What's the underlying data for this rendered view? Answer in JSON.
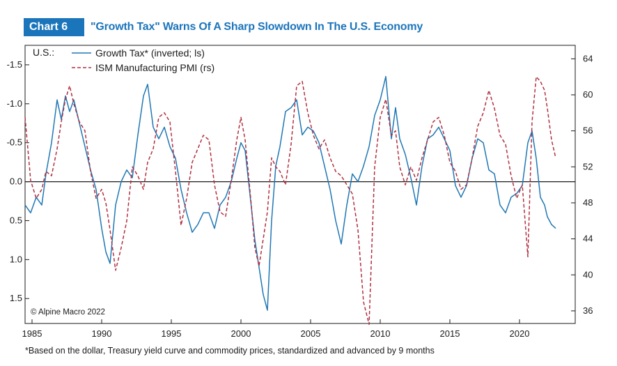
{
  "header": {
    "badge": "Chart 6",
    "title": "\"Growth Tax\" Warns Of A Sharp Slowdown In The U.S. Economy"
  },
  "footnote": "*Based on the dollar, Treasury yield curve and commodity prices, standardized and advanced by 9 months",
  "chart_data": {
    "type": "line",
    "region_label": "U.S.:",
    "source": "© Alpine Macro 2022",
    "x_ticks": [
      "1985",
      "1990",
      "1995",
      "2000",
      "2005",
      "2010",
      "2015",
      "2020"
    ],
    "xlim": [
      1984.5,
      2024.0
    ],
    "left_axis": {
      "ticks": [
        "-1.5",
        "-1.0",
        "-0.5",
        "0.0",
        "0.5",
        "1.0",
        "1.5"
      ],
      "ylim": [
        -1.75,
        1.82
      ],
      "inverted": true
    },
    "right_axis": {
      "ticks": [
        "64",
        "60",
        "56",
        "52",
        "48",
        "44",
        "40",
        "36"
      ],
      "ylim": [
        34.6,
        65.5
      ]
    },
    "zero_line": 0.0,
    "colors": {
      "growth_tax": "#1f77b4",
      "ism": "#b03040",
      "title": "#1b75bb"
    },
    "series": [
      {
        "name": "Growth Tax* (inverted; ls)",
        "axis": "left",
        "style": "solid",
        "x": [
          1984.5,
          1984.9,
          1985.3,
          1985.7,
          1986.0,
          1986.4,
          1986.8,
          1987.1,
          1987.4,
          1987.7,
          1988.0,
          1988.4,
          1988.8,
          1989.2,
          1989.6,
          1990.0,
          1990.3,
          1990.6,
          1991.0,
          1991.4,
          1991.8,
          1992.2,
          1992.6,
          1993.0,
          1993.3,
          1993.7,
          1994.1,
          1994.5,
          1994.9,
          1995.3,
          1995.7,
          1996.1,
          1996.5,
          1996.9,
          1997.3,
          1997.7,
          1998.1,
          1998.5,
          1998.9,
          1999.3,
          1999.7,
          2000.0,
          2000.3,
          2000.7,
          2001.0,
          2001.3,
          2001.6,
          2001.9,
          2002.2,
          2002.5,
          2002.8,
          2003.2,
          2003.6,
          2004.0,
          2004.4,
          2004.8,
          2005.2,
          2005.6,
          2006.0,
          2006.4,
          2006.8,
          2007.2,
          2007.6,
          2008.0,
          2008.4,
          2008.8,
          2009.2,
          2009.6,
          2010.0,
          2010.4,
          2010.8,
          2011.1,
          2011.4,
          2011.8,
          2012.2,
          2012.6,
          2013.0,
          2013.4,
          2013.8,
          2014.2,
          2014.6,
          2015.0,
          2015.4,
          2015.8,
          2016.2,
          2016.6,
          2017.0,
          2017.4,
          2017.8,
          2018.2,
          2018.6,
          2019.0,
          2019.4,
          2019.8,
          2020.2,
          2020.6,
          2020.9,
          2021.2,
          2021.5,
          2021.8,
          2022.0,
          2022.3,
          2022.6
        ],
        "values": [
          0.3,
          0.4,
          0.2,
          0.3,
          -0.1,
          -0.5,
          -1.05,
          -0.8,
          -1.1,
          -0.9,
          -1.05,
          -0.75,
          -0.45,
          -0.15,
          0.1,
          0.6,
          0.9,
          1.05,
          0.3,
          0.0,
          -0.15,
          -0.05,
          -0.6,
          -1.1,
          -1.25,
          -0.7,
          -0.55,
          -0.7,
          -0.45,
          -0.3,
          0.1,
          0.4,
          0.65,
          0.55,
          0.4,
          0.4,
          0.6,
          0.3,
          0.2,
          0.0,
          -0.3,
          -0.5,
          -0.4,
          0.25,
          0.75,
          1.1,
          1.45,
          1.65,
          0.5,
          -0.2,
          -0.45,
          -0.9,
          -0.95,
          -1.05,
          -0.6,
          -0.7,
          -0.65,
          -0.5,
          -0.2,
          0.1,
          0.5,
          0.8,
          0.3,
          -0.1,
          0.0,
          -0.2,
          -0.45,
          -0.85,
          -1.05,
          -1.35,
          -0.55,
          -0.95,
          -0.55,
          -0.35,
          -0.05,
          0.3,
          -0.2,
          -0.55,
          -0.6,
          -0.7,
          -0.55,
          -0.4,
          0.05,
          0.2,
          0.05,
          -0.3,
          -0.55,
          -0.5,
          -0.15,
          -0.1,
          0.3,
          0.4,
          0.2,
          0.15,
          0.05,
          -0.5,
          -0.65,
          -0.3,
          0.2,
          0.3,
          0.45,
          0.55,
          0.6
        ]
      },
      {
        "name": "ISM Manufacturing PMI (rs)",
        "axis": "right",
        "style": "dashed",
        "x": [
          1984.5,
          1984.9,
          1985.3,
          1985.7,
          1986.0,
          1986.4,
          1986.8,
          1987.1,
          1987.4,
          1987.7,
          1988.0,
          1988.4,
          1988.8,
          1989.2,
          1989.6,
          1990.0,
          1990.3,
          1990.6,
          1991.0,
          1991.4,
          1991.8,
          1992.2,
          1992.6,
          1993.0,
          1993.3,
          1993.7,
          1994.1,
          1994.5,
          1994.9,
          1995.3,
          1995.7,
          1996.1,
          1996.5,
          1996.9,
          1997.3,
          1997.7,
          1998.1,
          1998.5,
          1998.9,
          1999.3,
          1999.7,
          2000.0,
          2000.3,
          2000.7,
          2001.0,
          2001.3,
          2001.6,
          2001.9,
          2002.2,
          2002.5,
          2002.8,
          2003.2,
          2003.6,
          2004.0,
          2004.4,
          2004.8,
          2005.2,
          2005.6,
          2006.0,
          2006.4,
          2006.8,
          2007.2,
          2007.6,
          2008.0,
          2008.4,
          2008.8,
          2009.2,
          2009.6,
          2010.0,
          2010.4,
          2010.8,
          2011.1,
          2011.4,
          2011.8,
          2012.2,
          2012.6,
          2013.0,
          2013.4,
          2013.8,
          2014.2,
          2014.6,
          2015.0,
          2015.4,
          2015.8,
          2016.2,
          2016.6,
          2017.0,
          2017.4,
          2017.8,
          2018.2,
          2018.6,
          2019.0,
          2019.4,
          2019.8,
          2020.2,
          2020.6,
          2020.9,
          2021.2,
          2021.5,
          2021.8,
          2022.0,
          2022.3,
          2022.6
        ],
        "values": [
          57.5,
          50.5,
          48.5,
          49.5,
          51.5,
          51.0,
          54.0,
          57.0,
          59.5,
          61.0,
          59.0,
          57.0,
          56.0,
          51.5,
          48.5,
          49.5,
          48.0,
          45.0,
          40.5,
          43.0,
          46.0,
          52.0,
          51.0,
          49.5,
          52.5,
          54.0,
          57.5,
          58.0,
          57.0,
          51.5,
          45.5,
          48.5,
          52.5,
          54.0,
          55.5,
          55.0,
          50.0,
          47.0,
          46.5,
          50.5,
          55.0,
          57.5,
          55.0,
          48.5,
          43.0,
          41.0,
          44.0,
          47.0,
          53.0,
          52.0,
          51.5,
          50.0,
          54.5,
          61.0,
          61.5,
          58.0,
          55.5,
          54.0,
          55.0,
          53.0,
          51.5,
          51.0,
          50.0,
          49.0,
          45.0,
          37.0,
          34.5,
          52.0,
          57.5,
          59.5,
          55.5,
          56.0,
          52.0,
          50.0,
          52.0,
          50.5,
          53.0,
          55.0,
          57.0,
          57.5,
          55.5,
          52.5,
          51.5,
          49.5,
          50.0,
          53.0,
          56.5,
          58.0,
          60.5,
          58.5,
          55.5,
          54.5,
          51.0,
          48.5,
          50.0,
          42.0,
          57.0,
          62.0,
          61.5,
          60.5,
          58.5,
          55.0,
          53.0
        ]
      }
    ]
  }
}
